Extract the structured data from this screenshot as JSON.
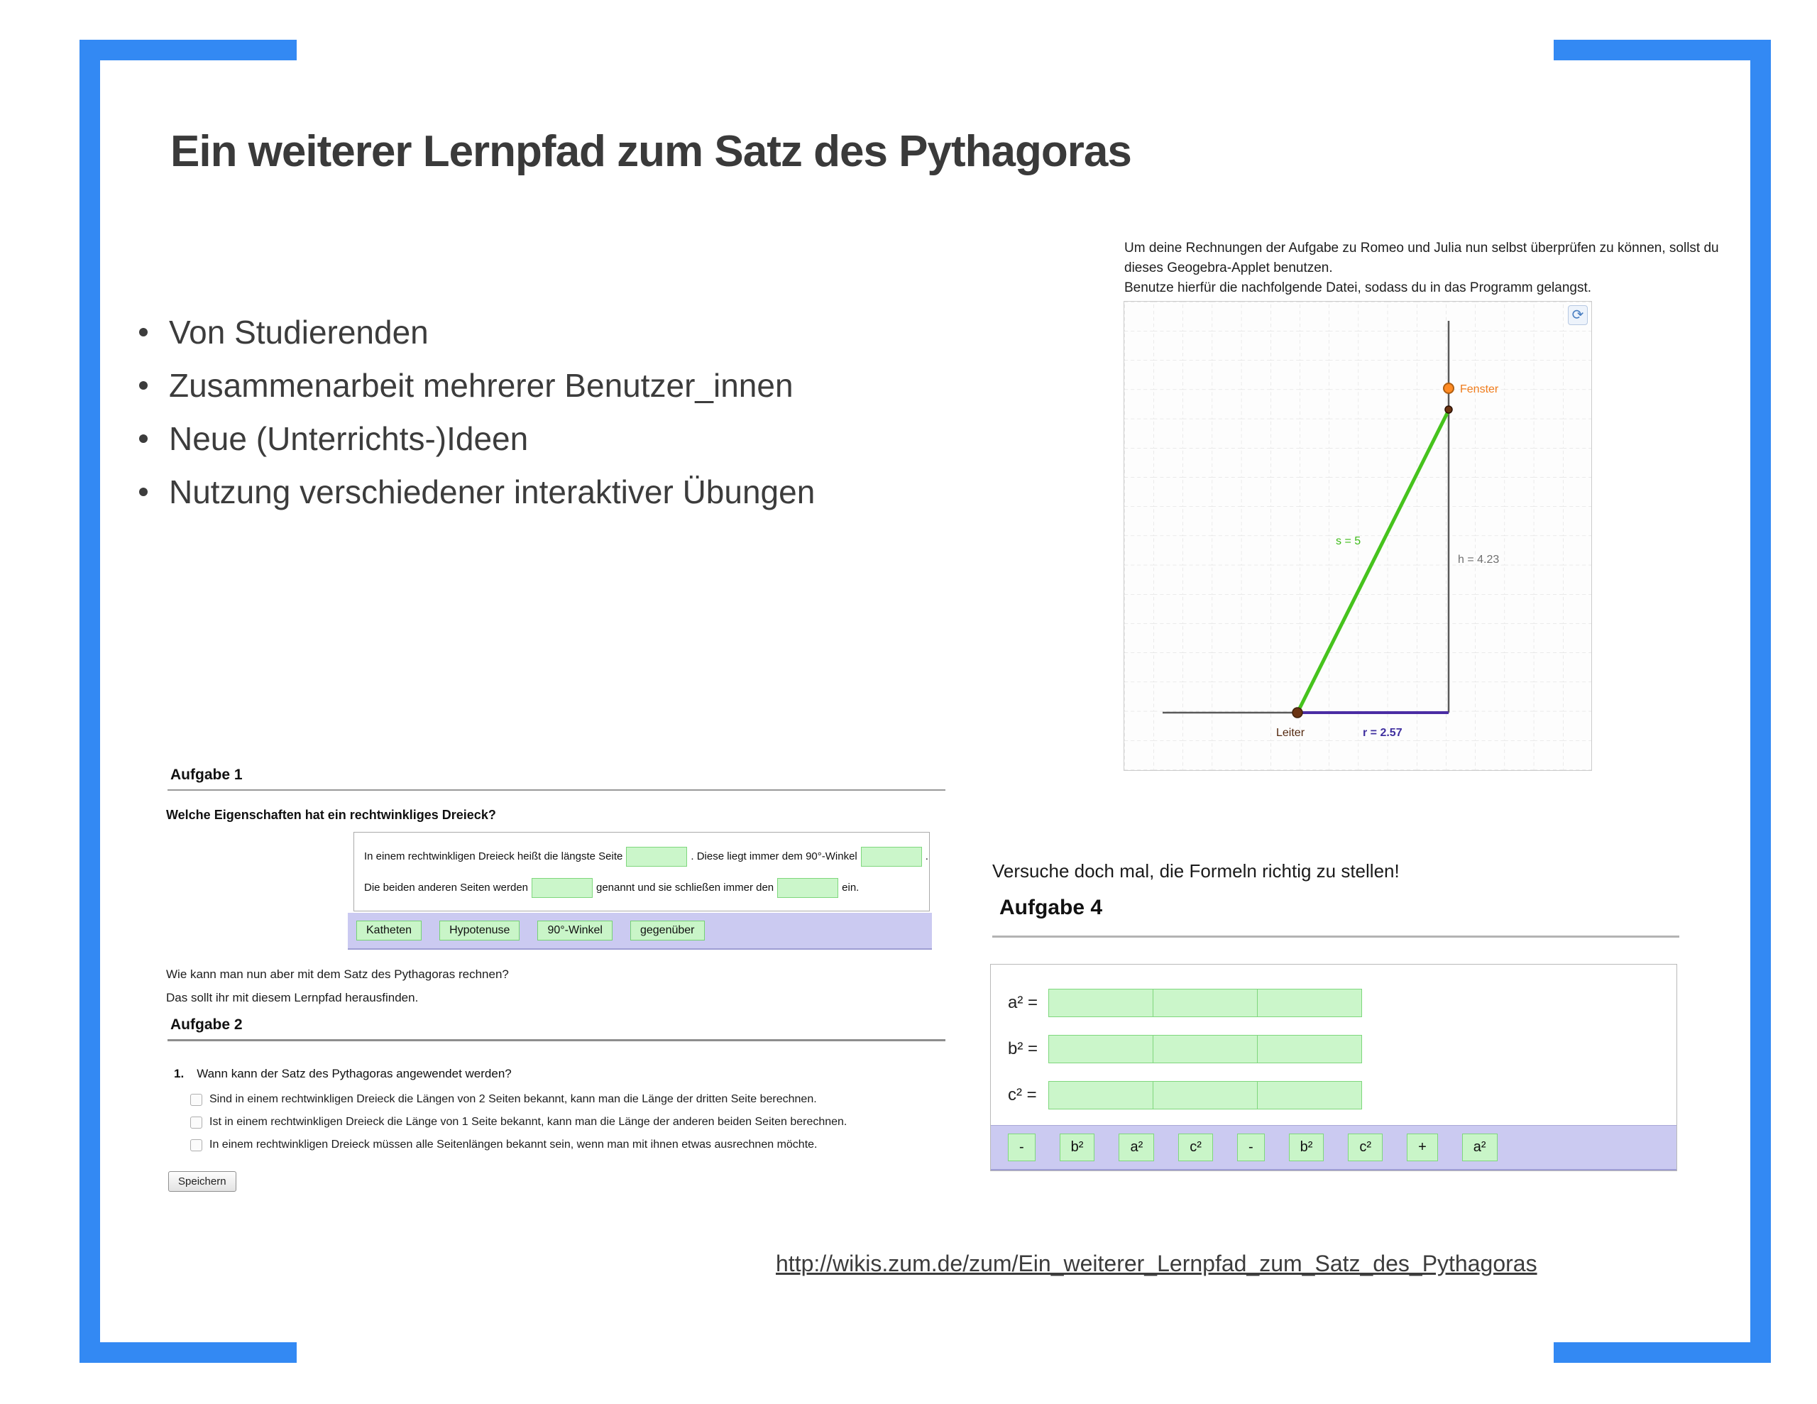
{
  "slide": {
    "title": "Ein weiterer Lernpfad zum Satz des Pythagoras",
    "bullets": [
      "Von Studierenden",
      "Zusammenarbeit mehrerer Benutzer_innen",
      "Neue (Unterrichts-)Ideen",
      "Nutzung verschiedener interaktiver Übungen"
    ],
    "footer_link": "http://wikis.zum.de/zum/Ein_weiterer_Lernpfad_zum_Satz_des_Pythagoras"
  },
  "geogebra_panel": {
    "instruction1": "Um deine Rechnungen der Aufgabe zu Romeo und Julia nun selbst überprüfen zu können, sollst du dieses Geogebra-Applet benutzen.",
    "instruction2": "Benutze hierfür die nachfolgende Datei, sodass du in das Programm gelangst.",
    "labels": {
      "window_point": "Fenster",
      "ladder_point": "Leiter",
      "ladder_length": "s = 5",
      "wall_height": "h = 4.23",
      "ground_distance": "r = 2.57"
    }
  },
  "aufgabe1": {
    "heading": "Aufgabe 1",
    "question": "Welche Eigenschaften hat ein rechtwinkliges Dreieck?",
    "cloze": {
      "line1_part1": "In einem rechtwinkligen Dreieck heißt die längste Seite",
      "line1_part2": ". Diese liegt immer dem 90°-Winkel",
      "line1_part3": ".",
      "line2_part1": "Die beiden anderen Seiten werden",
      "line2_part2": "genannt und sie schließen immer den",
      "line2_part3": "ein."
    },
    "word_bank": [
      "Katheten",
      "Hypotenuse",
      "90°-Winkel",
      "gegenüber"
    ]
  },
  "transition": {
    "line1": "Wie kann man nun aber mit dem Satz des Pythagoras rechnen?",
    "line2": "Das sollt ihr mit diesem Lernpfad herausfinden."
  },
  "aufgabe2": {
    "heading": "Aufgabe 2",
    "number": "1.",
    "question": "Wann kann der Satz des Pythagoras angewendet werden?",
    "options": [
      "Sind in einem rechtwinkligen Dreieck die Längen von 2 Seiten bekannt, kann man die Länge der dritten Seite berechnen.",
      "Ist in einem rechtwinkligen Dreieck die Länge von 1 Seite bekannt, kann man die Länge der anderen beiden Seiten berechnen.",
      "In einem rechtwinkligen Dreieck müssen alle Seitenlängen bekannt sein, wenn man mit ihnen etwas ausrechnen möchte."
    ],
    "save_label": "Speichern"
  },
  "aufgabe4": {
    "intro": "Versuche doch mal, die Formeln richtig zu stellen!",
    "heading": "Aufgabe 4",
    "rows": [
      {
        "label": "a² =",
        "slots": 3
      },
      {
        "label": "b² =",
        "slots": 3
      },
      {
        "label": "c² =",
        "slots": 3
      }
    ],
    "tiles": [
      "-",
      "b²",
      "a²",
      "c²",
      "-",
      "b²",
      "c²",
      "+",
      "a²"
    ]
  },
  "icons": {
    "refresh": "⟳"
  },
  "colors": {
    "frame_blue": "#3389f3",
    "field_green": "#cbf6ca",
    "field_green_border": "#7fd77d",
    "bank_lavender": "#cbcaf1",
    "line_green": "#46c31d",
    "line_purple": "#4b2da4",
    "line_gray": "#5a5a5a",
    "point_orange": "#ff8b24",
    "point_brown": "#6b3413",
    "label_orange": "#f07c1c",
    "label_green": "#3dbb18",
    "label_gray": "#6f6f6f",
    "label_brown": "#53280f",
    "label_purple": "#3f2f9f"
  }
}
